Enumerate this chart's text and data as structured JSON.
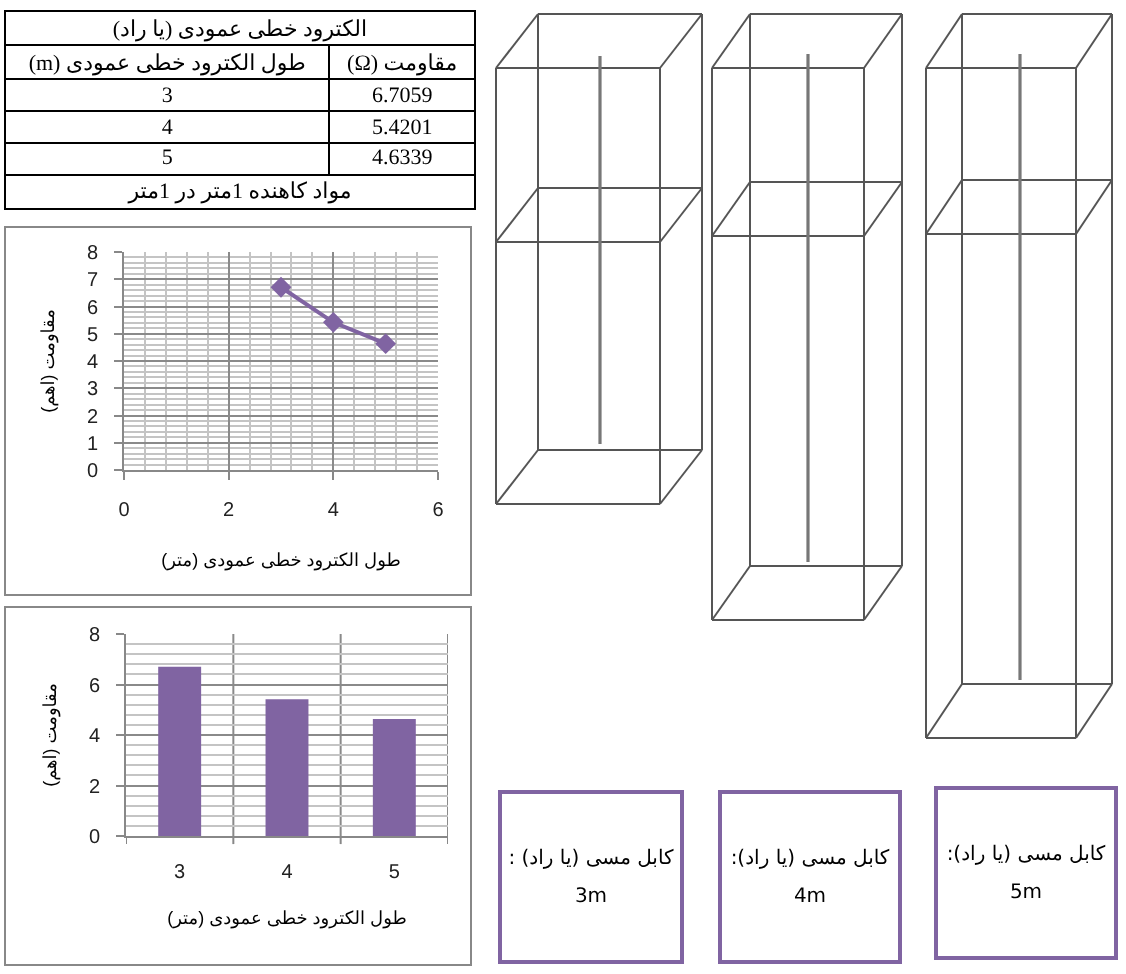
{
  "chart_data": [
    {
      "type": "other",
      "title": "الکترود خطی عمودی (یا راد)",
      "annotations": [
        "طول الکترود خطی عمودی (m)",
        "مقاومت (Ω)",
        "3",
        "6.7059",
        "4",
        "5.4201",
        "5",
        "4.6339",
        "مواد کاهنده 1متر در 1متر"
      ]
    },
    {
      "type": "line",
      "x": [
        3,
        4,
        5
      ],
      "values": [
        6.7059,
        5.4201,
        4.6339
      ],
      "color": "#8064a2",
      "xlabel": "طول الکترود خطی عمودی (متر)",
      "ylabel": "مقاومت (اهم)",
      "xlim": [
        0,
        6
      ],
      "xticks": [
        0,
        2,
        4,
        6
      ],
      "ylim": [
        0,
        8
      ],
      "yticks": [
        0,
        1,
        2,
        3,
        4,
        5,
        6,
        7,
        8
      ],
      "grid": true,
      "marker": "diamond",
      "line_style": "solid"
    },
    {
      "type": "bar",
      "categories": [
        "3",
        "4",
        "5"
      ],
      "values": [
        6.7059,
        5.4201,
        4.6339
      ],
      "color": "#8064a2",
      "xlabel": "طول الکترود خطی عمودی (متر)",
      "ylabel": "مقاومت (اهم)",
      "ylim": [
        0,
        8
      ],
      "yticks": [
        0,
        2,
        4,
        6,
        8
      ],
      "grid": true
    },
    {
      "type": "other",
      "annotations": [
        "کابل مسی (یا راد) :\n3m",
        "کابل مسی (یا راد):\n4m",
        "کابل مسی (یا راد):\n5m"
      ]
    }
  ]
}
